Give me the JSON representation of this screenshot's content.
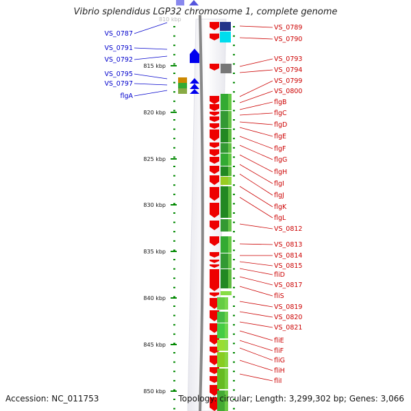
{
  "title": "Vibrio splendidus LGP32 chromosome 1, complete genome",
  "accession": "Accession: NC_011753",
  "topology": "Topology: circular; Length: 3,299,302 bp; Genes: 3,066",
  "colors": {
    "left_label": "#0000cc",
    "right_label": "#cc0000",
    "gene_forward": "#0000ee",
    "gene_reverse": "#ee0000",
    "tick": "#008800"
  },
  "scale_labels": [
    "815 kbp",
    "820 kbp",
    "825 kbp",
    "830 kbp",
    "835 kbp",
    "840 kbp",
    "845 kbp",
    "850 kbp"
  ],
  "left_genes": [
    "VS_0787",
    "VS_0791",
    "VS_0792",
    "VS_0795",
    "VS_0797",
    "flgA"
  ],
  "right_genes": [
    "VS_0789",
    "VS_0790",
    "VS_0793",
    "VS_0794",
    "VS_0799",
    "VS_0800",
    "flgB",
    "flgC",
    "flgD",
    "flgE",
    "flgF",
    "flgG",
    "flgH",
    "flgI",
    "flgJ",
    "flgK",
    "flgL",
    "VS_0812",
    "VS_0813",
    "VS_0814",
    "VS_0815",
    "fliD",
    "VS_0817",
    "fliS",
    "VS_0819",
    "VS_0820",
    "VS_0821",
    "fliE",
    "fliF",
    "fliG",
    "fliH",
    "fliI"
  ]
}
